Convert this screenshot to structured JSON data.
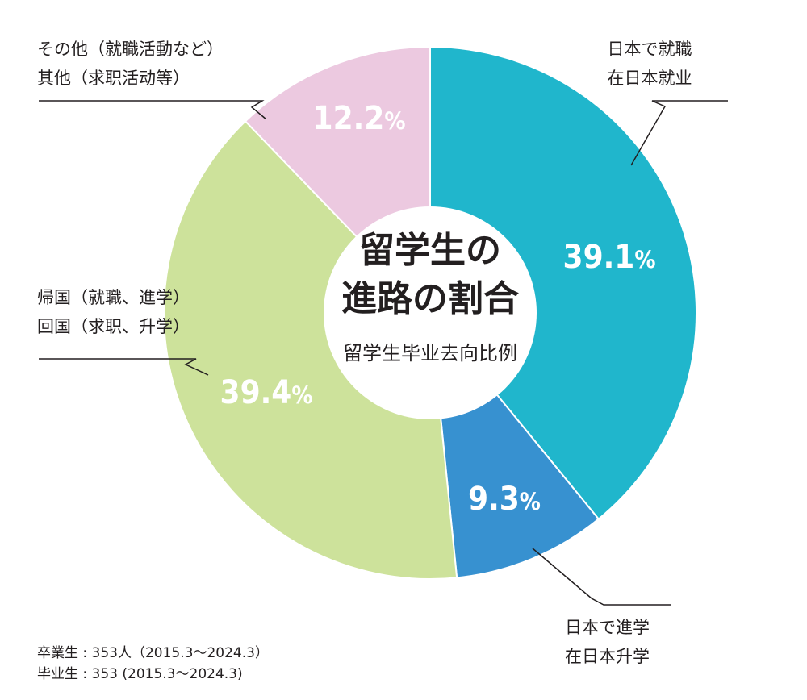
{
  "chart_data": {
    "type": "donut",
    "title": [
      "留学生の",
      "進路の割合"
    ],
    "subtitle": "留学生毕业去向比例",
    "slices": [
      {
        "value": 39.1,
        "label": "39.1",
        "unit": "%",
        "color": "#20b6cc",
        "label_lines": [
          "日本で就職",
          "在日本就业"
        ]
      },
      {
        "value": 9.3,
        "label": "9.3",
        "unit": "%",
        "color": "#3791d0",
        "label_lines": [
          "日本で進学",
          "在日本升学"
        ]
      },
      {
        "value": 39.4,
        "label": "39.4",
        "unit": "%",
        "color": "#cde29b",
        "label_lines": [
          "帰国（就職、進学）",
          "回国（求职、升学）"
        ]
      },
      {
        "value": 12.2,
        "label": "12.2",
        "unit": "%",
        "color": "#ecc9e0",
        "label_lines": [
          "その他（就職活動など）",
          "其他（求职活动等）"
        ]
      }
    ]
  },
  "footnote": {
    "line1": "卒業生 : 353人（2015.3～2024.3）",
    "line2": "毕业生 : 353 (2015.3～2024.3)"
  }
}
